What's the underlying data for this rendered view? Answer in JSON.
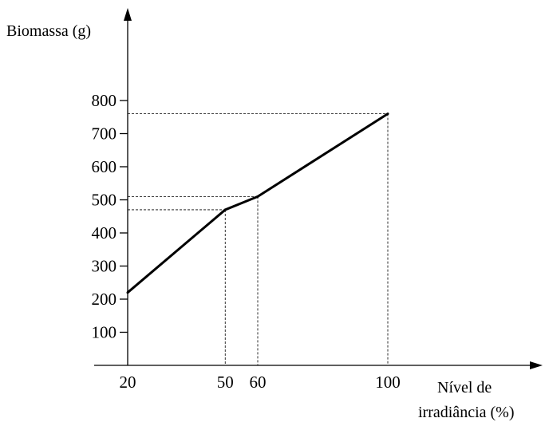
{
  "chart_data": {
    "type": "line",
    "ylabel": "Biomassa (g)",
    "xlabel_lines": [
      "Nível de",
      "irradiância (%)"
    ],
    "x_ticks": [
      "20",
      "50",
      "60",
      "100"
    ],
    "y_ticks": [
      "100",
      "200",
      "300",
      "400",
      "500",
      "600",
      "700",
      "800"
    ],
    "x": [
      20,
      50,
      60,
      100
    ],
    "y": [
      220,
      470,
      510,
      760
    ],
    "guide_points": [
      {
        "x": 50,
        "y": 470
      },
      {
        "x": 60,
        "y": 510
      },
      {
        "x": 100,
        "y": 760
      }
    ],
    "xlim": [
      20,
      100
    ],
    "ylim": [
      0,
      800
    ],
    "grid": false,
    "colors": {
      "line": "#000000",
      "axis": "#000000",
      "guide": "#000000"
    }
  }
}
